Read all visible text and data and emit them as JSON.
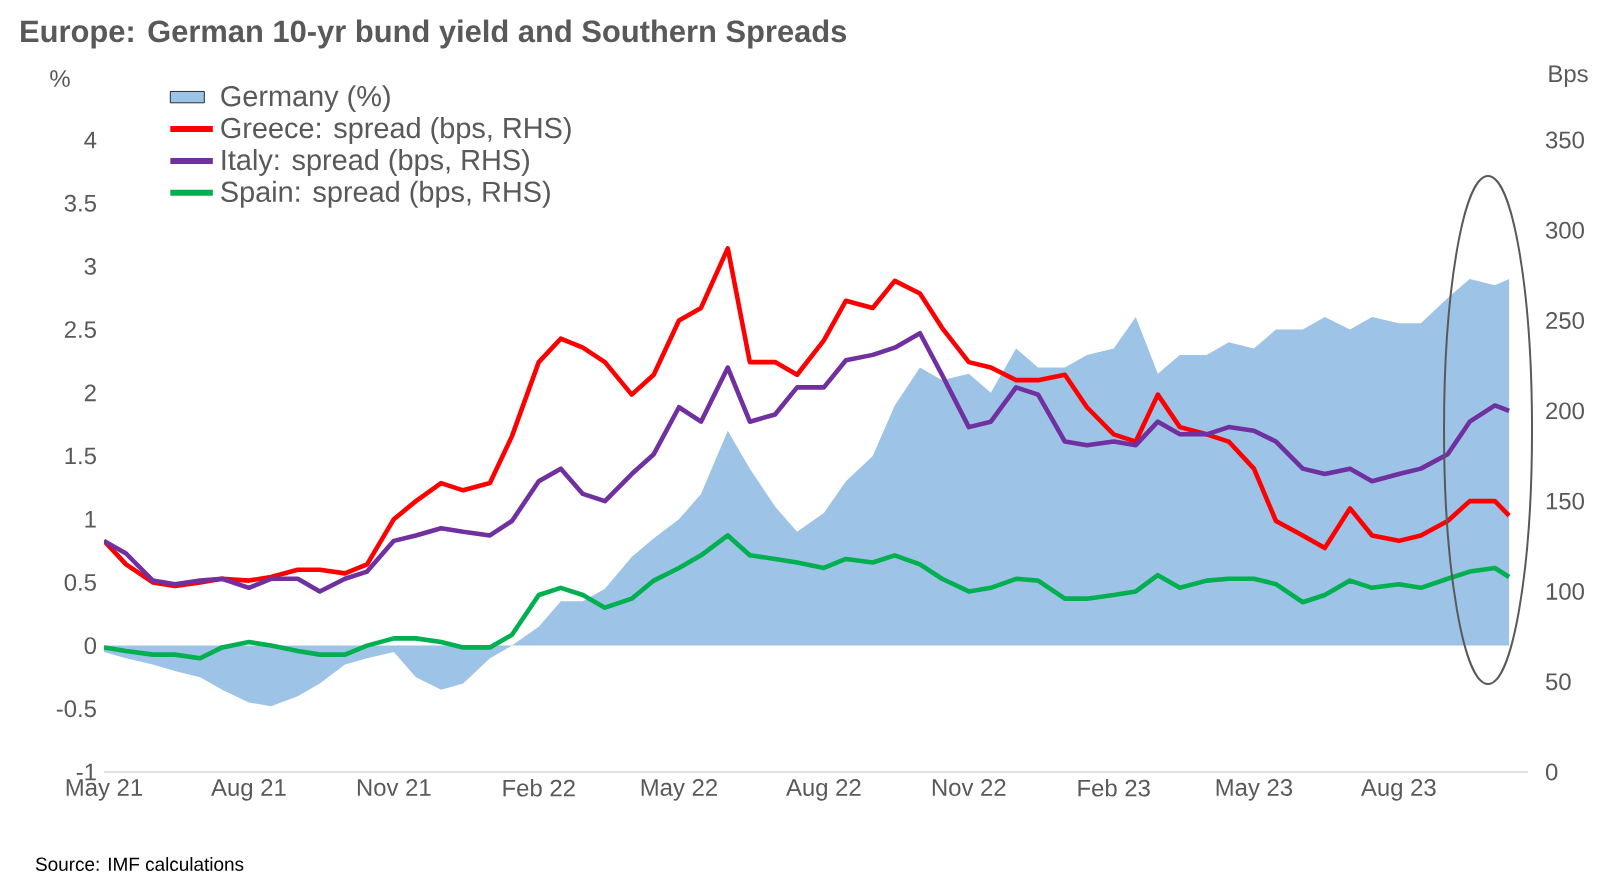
{
  "chart_data": {
    "type": "line",
    "title": "Europe: German 10-yr bund yield and Southern Spreads",
    "ylabel": "%",
    "y2label": "Bps",
    "annotations": [
      "Source: IMF calculations"
    ],
    "x": [
      "2021-05-01",
      "2021-05-15",
      "2021-06-01",
      "2021-06-15",
      "2021-07-01",
      "2021-07-15",
      "2021-08-01",
      "2021-08-15",
      "2021-09-01",
      "2021-09-15",
      "2021-10-01",
      "2021-10-15",
      "2021-11-01",
      "2021-11-15",
      "2021-12-01",
      "2021-12-15",
      "2022-01-01",
      "2022-01-15",
      "2022-02-01",
      "2022-02-15",
      "2022-03-01",
      "2022-03-15",
      "2022-04-01",
      "2022-04-15",
      "2022-05-01",
      "2022-05-15",
      "2022-06-01",
      "2022-06-15",
      "2022-07-01",
      "2022-07-15",
      "2022-08-01",
      "2022-08-15",
      "2022-09-01",
      "2022-09-15",
      "2022-10-01",
      "2022-10-15",
      "2022-11-01",
      "2022-11-15",
      "2022-12-01",
      "2022-12-15",
      "2023-01-01",
      "2023-01-15",
      "2023-02-01",
      "2023-02-15",
      "2023-03-01",
      "2023-03-15",
      "2023-04-01",
      "2023-04-15",
      "2023-05-01",
      "2023-05-15",
      "2023-06-01",
      "2023-06-15",
      "2023-07-01",
      "2023-07-15",
      "2023-08-01",
      "2023-08-15",
      "2023-09-01",
      "2023-09-15",
      "2023-10-01",
      "2023-10-10"
    ],
    "series": [
      {
        "name": "Germany (%)",
        "type": "area",
        "color": "#9dc3e6",
        "values": [
          -0.05,
          -0.1,
          -0.15,
          -0.2,
          -0.25,
          -0.35,
          -0.45,
          -0.48,
          -0.4,
          -0.3,
          -0.15,
          -0.1,
          -0.05,
          -0.25,
          -0.35,
          -0.3,
          -0.1,
          0,
          0.15,
          0.35,
          0.35,
          0.45,
          0.7,
          0.85,
          1.0,
          1.2,
          1.7,
          1.4,
          1.1,
          0.9,
          1.05,
          1.3,
          1.5,
          1.9,
          2.2,
          2.1,
          2.15,
          2.0,
          2.35,
          2.2,
          2.2,
          2.3,
          2.35,
          2.6,
          2.15,
          2.3,
          2.3,
          2.4,
          2.35,
          2.5,
          2.5,
          2.6,
          2.5,
          2.6,
          2.55,
          2.55,
          2.75,
          2.9,
          2.85,
          2.9
        ]
      },
      {
        "name": "Greece: spread (bps, RHS)",
        "axis": "y2",
        "color": "#ff0000",
        "values": [
          128,
          115,
          105,
          103,
          105,
          107,
          106,
          108,
          112,
          112,
          110,
          115,
          140,
          150,
          160,
          156,
          160,
          186,
          227,
          240,
          235,
          227,
          209,
          220,
          250,
          257,
          290,
          227,
          227,
          220,
          239,
          261,
          257,
          272,
          265,
          246,
          227,
          224,
          217,
          217,
          220,
          202,
          187,
          183,
          209,
          191,
          187,
          183,
          168,
          139,
          131,
          124,
          146,
          131,
          128,
          131,
          139,
          150,
          150,
          142
        ]
      },
      {
        "name": "Italy: spread (bps, RHS)",
        "axis": "y2",
        "color": "#7030a0",
        "values": [
          128,
          121,
          106,
          104,
          106,
          107,
          102,
          107,
          107,
          100,
          107,
          111,
          128,
          131,
          135,
          133,
          131,
          139,
          161,
          168,
          154,
          150,
          165,
          176,
          202,
          194,
          224,
          194,
          198,
          213,
          213,
          228,
          231,
          235,
          243,
          220,
          191,
          194,
          213,
          209,
          183,
          181,
          183,
          181,
          194,
          187,
          187,
          191,
          189,
          183,
          168,
          165,
          168,
          161,
          165,
          168,
          176,
          194,
          203,
          200
        ]
      },
      {
        "name": "Spain: spread (bps, RHS)",
        "axis": "y2",
        "color": "#00b050",
        "values": [
          69,
          67,
          65,
          65,
          63,
          69,
          72,
          70,
          67,
          65,
          65,
          70,
          74,
          74,
          72,
          69,
          69,
          76,
          98,
          102,
          98,
          91,
          96,
          106,
          113,
          120,
          131,
          120,
          118,
          116,
          113,
          118,
          116,
          120,
          115,
          107,
          100,
          102,
          107,
          106,
          96,
          96,
          98,
          100,
          109,
          102,
          106,
          107,
          107,
          104,
          94,
          98,
          106,
          102,
          104,
          102,
          107,
          111,
          113,
          108
        ]
      }
    ],
    "xlim": [
      "2021-05-01",
      "2023-10-22"
    ],
    "xticks": [
      {
        "value": "2021-05-01",
        "label": "May 21"
      },
      {
        "value": "2021-08-01",
        "label": "Aug 21"
      },
      {
        "value": "2021-11-01",
        "label": "Nov 21"
      },
      {
        "value": "2022-02-01",
        "label": "Feb 22"
      },
      {
        "value": "2022-05-01",
        "label": "May 22"
      },
      {
        "value": "2022-08-01",
        "label": "Aug 22"
      },
      {
        "value": "2022-11-01",
        "label": "Nov 22"
      },
      {
        "value": "2023-02-01",
        "label": "Feb 23"
      },
      {
        "value": "2023-05-01",
        "label": "May 23"
      },
      {
        "value": "2023-08-01",
        "label": "Aug 23"
      }
    ],
    "ylim": [
      -1,
      4
    ],
    "yticks": [
      -1,
      -0.5,
      0,
      0.5,
      1,
      1.5,
      2,
      2.5,
      3,
      3.5,
      4
    ],
    "y2lim": [
      0,
      350
    ],
    "y2ticks": [
      0,
      50,
      100,
      150,
      200,
      250,
      300,
      350
    ],
    "legend": "top left",
    "grid": false,
    "line_style": "solid",
    "marker": "none"
  }
}
